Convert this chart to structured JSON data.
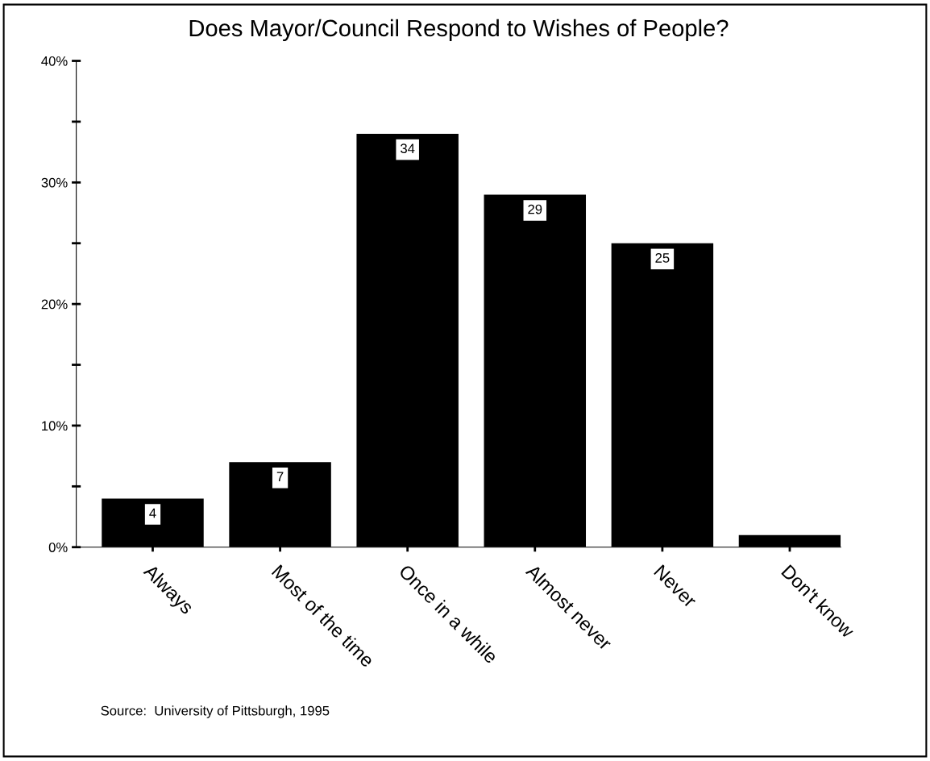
{
  "chart_data": {
    "type": "bar",
    "title": "Does Mayor/Council Respond to Wishes of People?",
    "categories": [
      "Always",
      "Most of the time",
      "Once in a while",
      "Almost never",
      "Never",
      "Don't know"
    ],
    "values": [
      4,
      7,
      34,
      29,
      25,
      1
    ],
    "value_labels": [
      "4",
      "7",
      "34",
      "29",
      "25",
      null
    ],
    "color": "#000000",
    "ylim": [
      0,
      40
    ],
    "yticks": [
      {
        "value": 0,
        "label": "0%"
      },
      {
        "value": 5,
        "label": null
      },
      {
        "value": 10,
        "label": "10%"
      },
      {
        "value": 15,
        "label": null
      },
      {
        "value": 20,
        "label": "20%"
      },
      {
        "value": 25,
        "label": null
      },
      {
        "value": 30,
        "label": "30%"
      },
      {
        "value": 35,
        "label": null
      },
      {
        "value": 40,
        "label": "40%"
      }
    ],
    "grid": false,
    "annotations": [
      "Source:  University of Pittsburgh, 1995"
    ]
  }
}
